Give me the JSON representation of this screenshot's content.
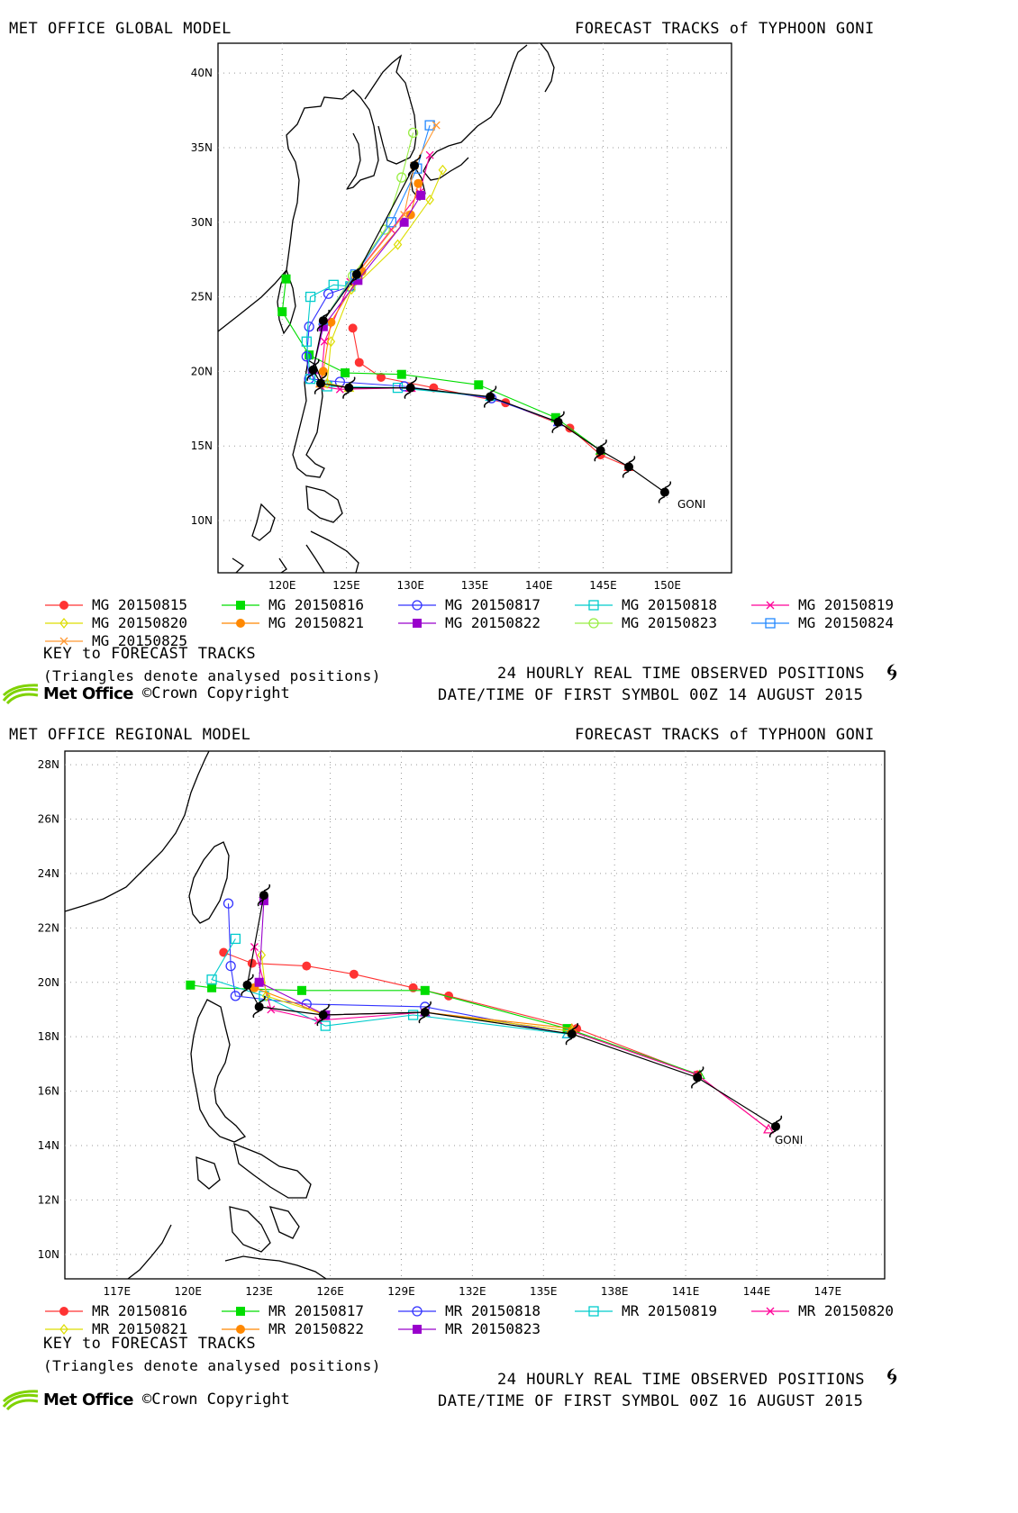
{
  "panels": [
    {
      "model_title": "MET OFFICE GLOBAL MODEL",
      "forecast_title": "FORECAST TRACKS of TYPHOON GONI",
      "storm_label": "GONI",
      "lon_ticks": [
        "120E",
        "125E",
        "130E",
        "135E",
        "140E",
        "145E",
        "150E"
      ],
      "lat_ticks": [
        "10N",
        "15N",
        "20N",
        "25N",
        "30N",
        "35N",
        "40N"
      ],
      "legend": [
        "MG 20150815",
        "MG 20150816",
        "MG 20150817",
        "MG 20150818",
        "MG 20150819",
        "MG 20150820",
        "MG 20150821",
        "MG 20150822",
        "MG 20150823",
        "MG 20150824",
        "MG 20150825"
      ],
      "key_title": "KEY to FORECAST TRACKS",
      "triangles_note": "(Triangles denote analysed positions)",
      "observed_label": "24 HOURLY REAL TIME OBSERVED POSITIONS",
      "first_symbol": "DATE/TIME OF FIRST SYMBOL 00Z 14 AUGUST 2015"
    },
    {
      "model_title": "MET OFFICE REGIONAL MODEL",
      "forecast_title": "FORECAST TRACKS of TYPHOON GONI",
      "storm_label": "GONI",
      "lon_ticks": [
        "117E",
        "120E",
        "123E",
        "126E",
        "129E",
        "132E",
        "135E",
        "138E",
        "141E",
        "144E",
        "147E"
      ],
      "lat_ticks": [
        "10N",
        "12N",
        "14N",
        "16N",
        "18N",
        "20N",
        "22N",
        "24N",
        "26N",
        "28N"
      ],
      "legend": [
        "MR 20150816",
        "MR 20150817",
        "MR 20150818",
        "MR 20150819",
        "MR 20150820",
        "MR 20150821",
        "MR 20150822",
        "MR 20150823"
      ],
      "key_title": "KEY to FORECAST TRACKS",
      "triangles_note": "(Triangles denote analysed positions)",
      "observed_label": "24 HOURLY REAL TIME OBSERVED POSITIONS",
      "first_symbol": "DATE/TIME OF FIRST SYMBOL 00Z 16 AUGUST 2015"
    }
  ],
  "logo_text": "Met Office",
  "copyright": "©Crown Copyright",
  "series_styles": [
    {
      "color": "#ff3333",
      "marker": "circle-filled"
    },
    {
      "color": "#00dd00",
      "marker": "square-filled"
    },
    {
      "color": "#3333ff",
      "marker": "circle-open"
    },
    {
      "color": "#00cccc",
      "marker": "square-open"
    },
    {
      "color": "#ff0099",
      "marker": "x"
    },
    {
      "color": "#dddd00",
      "marker": "diamond-open"
    },
    {
      "color": "#ff8800",
      "marker": "circle-filled"
    },
    {
      "color": "#9900cc",
      "marker": "square-filled"
    },
    {
      "color": "#99ee44",
      "marker": "circle-open"
    },
    {
      "color": "#2288ff",
      "marker": "square-open"
    },
    {
      "color": "#ff9933",
      "marker": "x"
    }
  ],
  "tracks": {
    "global": {
      "observed": [
        [
          149.8,
          11.9
        ],
        [
          147.0,
          13.6
        ],
        [
          144.8,
          14.7
        ],
        [
          141.5,
          16.6
        ],
        [
          136.2,
          18.3
        ],
        [
          130.0,
          18.9
        ],
        [
          125.2,
          18.9
        ],
        [
          123.0,
          19.2
        ],
        [
          122.4,
          20.1
        ],
        [
          123.2,
          23.4
        ],
        [
          125.8,
          26.5
        ],
        [
          130.3,
          33.8
        ]
      ],
      "forecasts": [
        [
          [
            147.0,
            13.6
          ],
          [
            144.8,
            14.4
          ],
          [
            142.4,
            16.2
          ],
          [
            137.4,
            17.9
          ],
          [
            131.8,
            18.9
          ],
          [
            127.7,
            19.6
          ],
          [
            126.0,
            20.6
          ],
          [
            125.5,
            22.9
          ]
        ],
        [
          [
            144.8,
            14.7
          ],
          [
            141.3,
            16.9
          ],
          [
            135.3,
            19.1
          ],
          [
            129.3,
            19.8
          ],
          [
            124.9,
            19.9
          ],
          [
            122.1,
            21.1
          ],
          [
            120.0,
            24.0
          ],
          [
            120.3,
            26.2
          ]
        ],
        [
          [
            141.5,
            16.6
          ],
          [
            136.3,
            18.2
          ],
          [
            129.5,
            19.0
          ],
          [
            124.5,
            19.3
          ],
          [
            122.1,
            19.5
          ],
          [
            121.9,
            21.0
          ],
          [
            122.1,
            23.0
          ],
          [
            123.6,
            25.2
          ],
          [
            125.3,
            25.7
          ]
        ],
        [
          [
            136.2,
            18.3
          ],
          [
            129.0,
            18.9
          ],
          [
            123.5,
            19.0
          ],
          [
            122.2,
            19.5
          ],
          [
            121.9,
            22.0
          ],
          [
            122.2,
            25.0
          ],
          [
            124.0,
            25.8
          ],
          [
            125.3,
            25.7
          ]
        ],
        [
          [
            130.0,
            18.9
          ],
          [
            124.5,
            18.8
          ],
          [
            123.0,
            19.0
          ],
          [
            123.3,
            22.0
          ],
          [
            125.3,
            26.0
          ],
          [
            128.5,
            29.5
          ],
          [
            130.7,
            32.0
          ],
          [
            131.5,
            34.5
          ]
        ],
        [
          [
            125.2,
            18.9
          ],
          [
            123.5,
            19.2
          ],
          [
            123.8,
            22.0
          ],
          [
            125.4,
            25.5
          ],
          [
            129.0,
            28.5
          ],
          [
            131.5,
            31.5
          ],
          [
            132.5,
            33.5
          ]
        ],
        [
          [
            123.0,
            19.2
          ],
          [
            123.2,
            20.0
          ],
          [
            123.8,
            23.3
          ],
          [
            126.2,
            26.7
          ],
          [
            130.0,
            30.5
          ],
          [
            130.6,
            32.6
          ]
        ],
        [
          [
            122.4,
            20.1
          ],
          [
            123.2,
            23.0
          ],
          [
            125.9,
            26.1
          ],
          [
            129.5,
            30.0
          ],
          [
            130.8,
            31.8
          ]
        ],
        [
          [
            123.2,
            23.4
          ],
          [
            125.5,
            26.4
          ],
          [
            128.0,
            29.5
          ],
          [
            129.3,
            33.0
          ],
          [
            130.2,
            36.0
          ]
        ],
        [
          [
            123.2,
            23.4
          ],
          [
            125.7,
            26.5
          ],
          [
            128.5,
            30.0
          ],
          [
            130.5,
            33.6
          ],
          [
            131.5,
            36.5
          ]
        ],
        [
          [
            125.8,
            26.5
          ],
          [
            129.5,
            30.5
          ],
          [
            130.3,
            33.8
          ],
          [
            132.0,
            36.5
          ]
        ]
      ]
    },
    "regional": {
      "observed": [
        [
          144.8,
          14.7
        ],
        [
          141.5,
          16.5
        ],
        [
          136.2,
          18.1
        ],
        [
          130.0,
          18.9
        ],
        [
          125.7,
          18.8
        ],
        [
          123.0,
          19.1
        ],
        [
          122.5,
          19.9
        ],
        [
          123.2,
          23.2
        ]
      ],
      "forecasts": [
        [
          [
            144.5,
            14.6
          ],
          [
            141.5,
            16.6
          ],
          [
            136.4,
            18.3
          ],
          [
            131.0,
            19.5
          ],
          [
            129.5,
            19.8
          ],
          [
            127.0,
            20.3
          ],
          [
            125.0,
            20.6
          ],
          [
            122.7,
            20.7
          ],
          [
            121.5,
            21.1
          ]
        ],
        [
          [
            141.6,
            16.6
          ],
          [
            136.0,
            18.3
          ],
          [
            130.0,
            19.7
          ],
          [
            124.8,
            19.7
          ],
          [
            121.0,
            19.8
          ],
          [
            120.1,
            19.9
          ]
        ],
        [
          [
            136.0,
            18.1
          ],
          [
            130.0,
            19.1
          ],
          [
            125.0,
            19.2
          ],
          [
            122.0,
            19.5
          ],
          [
            121.8,
            20.6
          ],
          [
            121.7,
            22.9
          ]
        ],
        [
          [
            136.0,
            18.1
          ],
          [
            129.5,
            18.8
          ],
          [
            125.8,
            18.4
          ],
          [
            123.2,
            19.5
          ],
          [
            121.0,
            20.1
          ],
          [
            122.0,
            21.6
          ]
        ],
        [
          [
            144.5,
            14.6
          ],
          [
            141.5,
            16.6
          ],
          [
            136.2,
            18.2
          ],
          [
            130.0,
            18.9
          ],
          [
            125.5,
            18.6
          ],
          [
            123.5,
            19.0
          ],
          [
            122.8,
            21.3
          ]
        ],
        [
          [
            136.2,
            18.2
          ],
          [
            130.0,
            18.9
          ],
          [
            125.8,
            18.8
          ],
          [
            123.3,
            19.5
          ],
          [
            123.1,
            21.0
          ]
        ],
        [
          [
            136.2,
            18.3
          ],
          [
            130.0,
            18.9
          ],
          [
            125.8,
            18.8
          ],
          [
            122.8,
            19.8
          ]
        ],
        [
          [
            130.0,
            18.9
          ],
          [
            125.8,
            18.8
          ],
          [
            123.0,
            20.0
          ],
          [
            123.2,
            23.0
          ]
        ]
      ]
    }
  }
}
